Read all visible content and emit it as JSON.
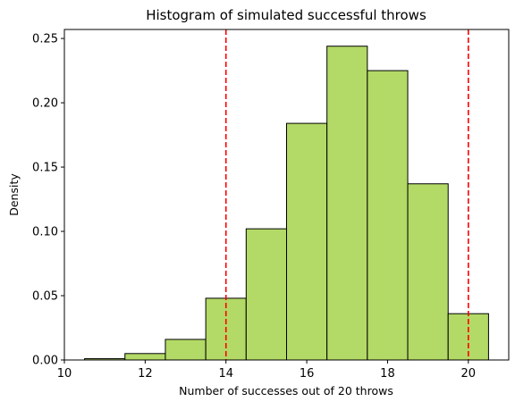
{
  "chart_data": {
    "type": "bar",
    "subtype": "histogram",
    "title": "Histogram of simulated successful throws",
    "xlabel": "Number of successes out of 20 throws",
    "ylabel": "Density",
    "xlim": [
      10,
      21
    ],
    "ylim": [
      0,
      0.257
    ],
    "xticks": [
      10,
      12,
      14,
      16,
      18,
      20
    ],
    "xtick_labels": [
      "10",
      "12",
      "14",
      "16",
      "18",
      "20"
    ],
    "yticks": [
      0,
      0.05,
      0.1,
      0.15,
      0.2,
      0.25
    ],
    "ytick_labels": [
      "0.00",
      "0.05",
      "0.10",
      "0.15",
      "0.20",
      "0.25"
    ],
    "bins": [
      {
        "x0": 10.5,
        "x1": 11.5,
        "density": 0.001
      },
      {
        "x0": 11.5,
        "x1": 12.5,
        "density": 0.005
      },
      {
        "x0": 12.5,
        "x1": 13.5,
        "density": 0.016
      },
      {
        "x0": 13.5,
        "x1": 14.5,
        "density": 0.048
      },
      {
        "x0": 14.5,
        "x1": 15.5,
        "density": 0.102
      },
      {
        "x0": 15.5,
        "x1": 16.5,
        "density": 0.184
      },
      {
        "x0": 16.5,
        "x1": 17.5,
        "density": 0.244
      },
      {
        "x0": 17.5,
        "x1": 18.5,
        "density": 0.225
      },
      {
        "x0": 18.5,
        "x1": 19.5,
        "density": 0.137
      },
      {
        "x0": 19.5,
        "x1": 20.5,
        "density": 0.036
      }
    ],
    "vlines": [
      {
        "x": 14,
        "color": "#ff0000",
        "style": "dashed"
      },
      {
        "x": 20,
        "color": "#ff0000",
        "style": "dashed"
      }
    ],
    "bar_color": "#b3d966",
    "bar_edge_color": "#000000",
    "grid": false,
    "legend": "none"
  }
}
